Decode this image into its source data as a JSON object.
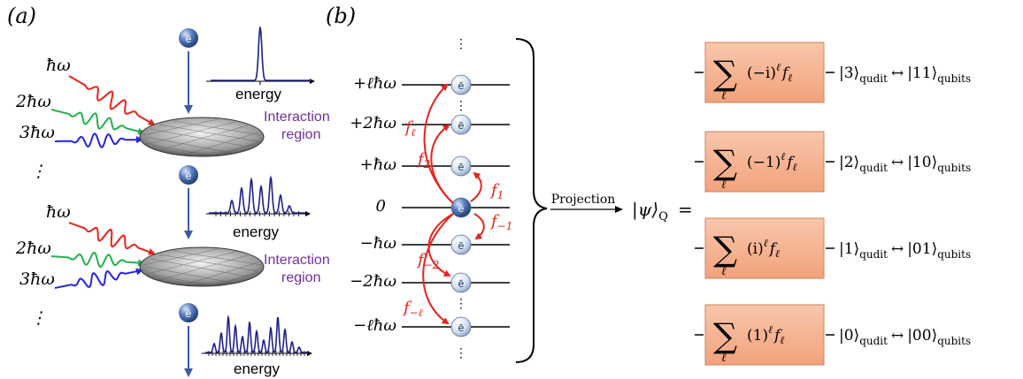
{
  "panel_a": {
    "label": "(a)",
    "photons_top": [
      "ħω",
      "2ħω",
      "3ħω",
      "⋮"
    ],
    "photons_bottom": [
      "ħω",
      "2ħω",
      "3ħω",
      "⋮"
    ],
    "electron": "ē",
    "energy_label": "energy",
    "interaction_line1": "Interaction",
    "interaction_line2": "region"
  },
  "panel_b": {
    "label": "(b)",
    "levels": [
      "+ℓħω",
      "+2ħω",
      "+ħω",
      "0",
      "−ħω",
      "−2ħω",
      "−ℓħω"
    ],
    "vdots": "⋮",
    "electron": "ē",
    "coefficients": {
      "f_l": "ℓ",
      "f_2": "2",
      "f_1": "1",
      "f_m1": "−1",
      "f_m2": "−2",
      "f_ml": "−ℓ"
    }
  },
  "projection": {
    "arrow_label": "Projection",
    "state": "|ψ⟩",
    "state_sub": "Q",
    "equals": "="
  },
  "qudit_states": [
    {
      "sum_base": "(−i)",
      "qudit": "|3⟩",
      "qubits": "|11⟩"
    },
    {
      "sum_base": "(−1)",
      "qudit": "|2⟩",
      "qubits": "|10⟩"
    },
    {
      "sum_base": "(i)",
      "qudit": "|1⟩",
      "qubits": "|01⟩"
    },
    {
      "sum_base": "(1)",
      "qudit": "|0⟩",
      "qubits": "|00⟩"
    }
  ],
  "common": {
    "sum_symbol": "∑",
    "sum_index": "ℓ",
    "power": "ℓ",
    "f": "f",
    "sub_l": "ℓ",
    "qudit_sub": "qudit",
    "qubits_sub": "qubits",
    "iff": "↔",
    "dash": "–"
  },
  "colors": {
    "red": "#e8221c",
    "green": "#22b14c",
    "blue": "#2323e8",
    "purple": "#7030a0",
    "spectrum": "#1f1f8c",
    "arrow_down": "#3b5ba8",
    "box_fill": "#f5b28f",
    "box_stroke": "#c9865f"
  },
  "icons": [
    "electron-icon",
    "wavy-photon-arrow",
    "interaction-disk",
    "down-arrow"
  ]
}
